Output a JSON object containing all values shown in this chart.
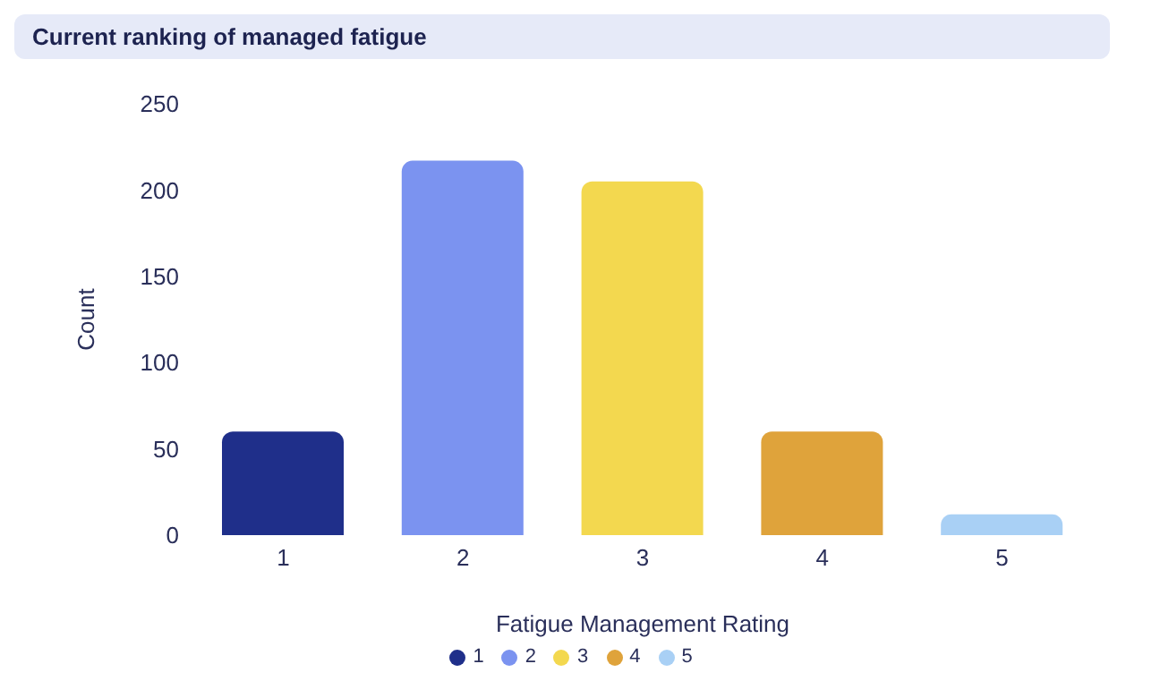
{
  "chart_data": {
    "type": "bar",
    "title": "Current ranking of managed fatigue",
    "xlabel": "Fatigue Management Rating",
    "ylabel": "Count",
    "categories": [
      "1",
      "2",
      "3",
      "4",
      "5"
    ],
    "series": [
      {
        "name": "1",
        "color": "#1f2f8a",
        "values": [
          60,
          null,
          null,
          null,
          null
        ]
      },
      {
        "name": "2",
        "color": "#7b93f0",
        "values": [
          null,
          217,
          null,
          null,
          null
        ]
      },
      {
        "name": "3",
        "color": "#f3d84f",
        "values": [
          null,
          null,
          205,
          null,
          null
        ]
      },
      {
        "name": "4",
        "color": "#dfa33b",
        "values": [
          null,
          null,
          null,
          60,
          null
        ]
      },
      {
        "name": "5",
        "color": "#a9d0f5",
        "values": [
          null,
          null,
          null,
          null,
          12
        ]
      }
    ],
    "stacked": true,
    "ylim": [
      0,
      250
    ],
    "yticks": [
      0,
      50,
      100,
      150,
      200,
      250
    ],
    "legend": "bottom"
  }
}
